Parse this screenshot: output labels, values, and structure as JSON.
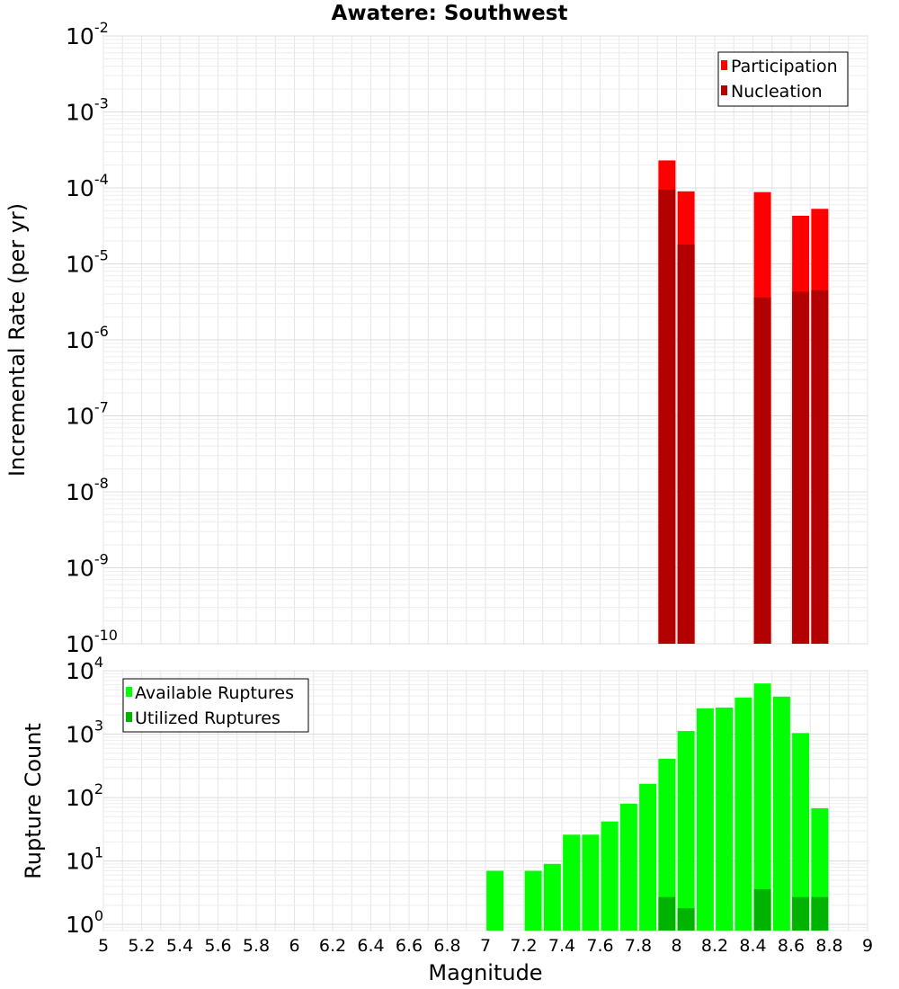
{
  "title": "Awatere: Southwest",
  "chart_data": [
    {
      "type": "bar",
      "ylabel": "Incremental Rate (per yr)",
      "yscale": "log",
      "ylim": [
        1e-10,
        0.01
      ],
      "xlim": [
        5,
        9
      ],
      "legend_position": "top-right",
      "grid": true,
      "y_ticks": [
        {
          "base": "10",
          "exp": "-10"
        },
        {
          "base": "10",
          "exp": "-9"
        },
        {
          "base": "10",
          "exp": "-8"
        },
        {
          "base": "10",
          "exp": "-7"
        },
        {
          "base": "10",
          "exp": "-6"
        },
        {
          "base": "10",
          "exp": "-5"
        },
        {
          "base": "10",
          "exp": "-4"
        },
        {
          "base": "10",
          "exp": "-3"
        },
        {
          "base": "10",
          "exp": "-2"
        }
      ],
      "series": [
        {
          "name": "Participation",
          "color": "#ff0000",
          "x": [
            7.95,
            8.05,
            8.45,
            8.65,
            8.75
          ],
          "values": [
            0.00023,
            9e-05,
            8.8e-05,
            4.3e-05,
            5.3e-05
          ]
        },
        {
          "name": "Nucleation",
          "color": "#b30000",
          "x": [
            7.95,
            8.05,
            8.45,
            8.65,
            8.75
          ],
          "values": [
            9.5e-05,
            1.8e-05,
            3.6e-06,
            4.3e-06,
            4.5e-06
          ]
        }
      ]
    },
    {
      "type": "bar",
      "ylabel": "Rupture Count",
      "xlabel": "Magnitude",
      "yscale": "log",
      "ylim": [
        0.8,
        10000
      ],
      "xlim": [
        5,
        9
      ],
      "legend_position": "top-left",
      "grid": true,
      "y_ticks": [
        {
          "base": "10",
          "exp": "0"
        },
        {
          "base": "10",
          "exp": "1"
        },
        {
          "base": "10",
          "exp": "2"
        },
        {
          "base": "10",
          "exp": "3"
        },
        {
          "base": "10",
          "exp": "4"
        }
      ],
      "x_ticks": [
        "5",
        "5.2",
        "5.4",
        "5.6",
        "5.8",
        "6",
        "6.2",
        "6.4",
        "6.6",
        "6.8",
        "7",
        "7.2",
        "7.4",
        "7.6",
        "7.8",
        "8",
        "8.2",
        "8.4",
        "8.6",
        "8.8",
        "9"
      ],
      "series": [
        {
          "name": "Available Ruptures",
          "color": "#00ff00",
          "x": [
            7.05,
            7.25,
            7.35,
            7.45,
            7.55,
            7.65,
            7.75,
            7.85,
            7.95,
            8.05,
            8.15,
            8.25,
            8.35,
            8.45,
            8.55,
            8.65,
            8.75
          ],
          "values": [
            7,
            7,
            9,
            26,
            26,
            42,
            80,
            165,
            410,
            1120,
            2560,
            2630,
            3780,
            6300,
            3900,
            1040,
            68
          ]
        },
        {
          "name": "Utilized Ruptures",
          "color": "#00b300",
          "x": [
            7.95,
            8.05,
            8.45,
            8.65,
            8.75
          ],
          "values": [
            2.7,
            1.8,
            3.6,
            2.7,
            2.7
          ]
        }
      ]
    }
  ]
}
